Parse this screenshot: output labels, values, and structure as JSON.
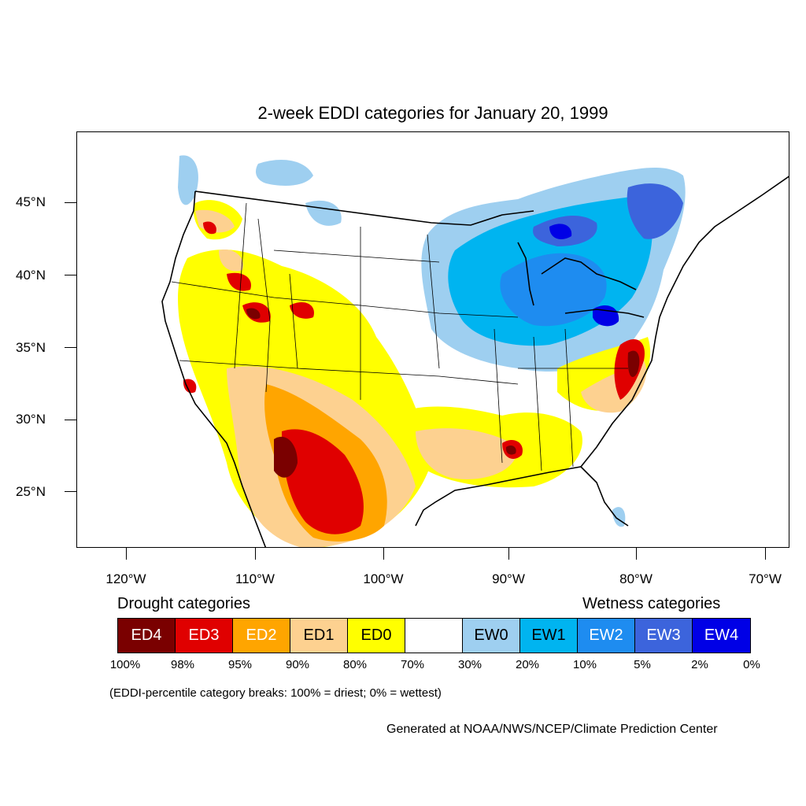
{
  "title": "2-week EDDI categories for January 20, 1999",
  "y_axis_labels": [
    "45°N",
    "40°N",
    "35°N",
    "30°N",
    "25°N"
  ],
  "x_axis_labels": [
    "120°W",
    "110°W",
    "100°W",
    "90°W",
    "80°W",
    "70°W"
  ],
  "legend": {
    "drought_heading": "Drought categories",
    "wetness_heading": "Wetness categories",
    "categories": [
      {
        "label": "ED4",
        "color": "#7a0000",
        "text_color": "#ffffff"
      },
      {
        "label": "ED3",
        "color": "#e00000",
        "text_color": "#ffffff"
      },
      {
        "label": "ED2",
        "color": "#ffa500",
        "text_color": "#ffffff"
      },
      {
        "label": "ED1",
        "color": "#fdd190",
        "text_color": "#000000"
      },
      {
        "label": "ED0",
        "color": "#ffff00",
        "text_color": "#000000"
      },
      {
        "label": "",
        "color": "#ffffff",
        "text_color": "#000000"
      },
      {
        "label": "EW0",
        "color": "#9ecff0",
        "text_color": "#000000"
      },
      {
        "label": "EW1",
        "color": "#00b4f0",
        "text_color": "#000000"
      },
      {
        "label": "EW2",
        "color": "#1e8cf0",
        "text_color": "#ffffff"
      },
      {
        "label": "EW3",
        "color": "#3c64dc",
        "text_color": "#ffffff"
      },
      {
        "label": "EW4",
        "color": "#0000e6",
        "text_color": "#ffffff"
      }
    ],
    "breaks": [
      "100%",
      "98%",
      "95%",
      "90%",
      "80%",
      "70%",
      "30%",
      "20%",
      "10%",
      "5%",
      "2%",
      "0%"
    ]
  },
  "note": "(EDDI-percentile category breaks: 100% = driest; 0% = wettest)",
  "credit": "Generated at NOAA/NWS/NCEP/Climate Prediction Center"
}
